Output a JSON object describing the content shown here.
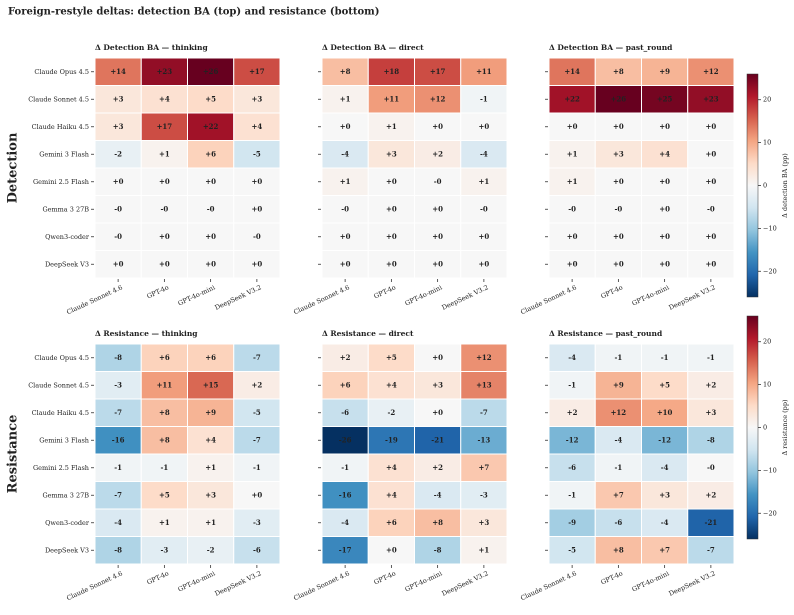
{
  "chart_data": {
    "type": "heatmap",
    "title": "Foreign-restyle deltas: detection BA (top) and resistance (bottom)",
    "colormap": "RdBu_r",
    "rows": [
      "Claude Opus 4.5",
      "Claude Sonnet 4.5",
      "Claude Haiku 4.5",
      "Gemini 3 Flash",
      "Gemini 2.5 Flash",
      "Gemma 3 27B",
      "Qwen3-coder",
      "DeepSeek V3"
    ],
    "columns": [
      "Claude Sonnet 4.6",
      "GPT-4o",
      "GPT-4o-mini",
      "DeepSeek V3.2"
    ],
    "groups": [
      {
        "name": "Detection",
        "colorbar_label": "Δ detection BA (pp)",
        "vlim": [
          -26,
          26
        ],
        "ticks": [
          {
            "value": -20,
            "label": "−20"
          },
          {
            "value": -10,
            "label": "−10"
          },
          0,
          10,
          20
        ],
        "panels": [
          {
            "title": "Δ Detection BA — thinking",
            "values": [
              [
                14,
                23,
                26,
                17
              ],
              [
                3,
                4,
                5,
                3
              ],
              [
                3,
                17,
                22,
                4
              ],
              [
                -2,
                1,
                6,
                -5
              ],
              [
                0,
                0,
                0,
                0
              ],
              [
                0,
                0,
                0,
                0
              ],
              [
                0,
                0,
                0,
                0
              ],
              [
                0,
                0,
                0,
                0
              ]
            ],
            "value_labels": [
              [
                "+14",
                "+23",
                "+26",
                "+17"
              ],
              [
                "+3",
                "+4",
                "+5",
                "+3"
              ],
              [
                "+3",
                "+17",
                "+22",
                "+4"
              ],
              [
                "-2",
                "+1",
                "+6",
                "-5"
              ],
              [
                "+0",
                "+0",
                "+0",
                "+0"
              ],
              [
                "-0",
                "-0",
                "-0",
                "+0"
              ],
              [
                "-0",
                "+0",
                "+0",
                "-0"
              ],
              [
                "+0",
                "+0",
                "+0",
                "+0"
              ]
            ]
          },
          {
            "title": "Δ Detection BA — direct",
            "values": [
              [
                8,
                18,
                17,
                11
              ],
              [
                1,
                11,
                12,
                -1
              ],
              [
                0,
                1,
                0,
                0
              ],
              [
                -4,
                3,
                2,
                -4
              ],
              [
                1,
                0,
                0,
                1
              ],
              [
                0,
                0,
                0,
                0
              ],
              [
                0,
                0,
                0,
                0
              ],
              [
                0,
                0,
                0,
                0
              ]
            ],
            "value_labels": [
              [
                "+8",
                "+18",
                "+17",
                "+11"
              ],
              [
                "+1",
                "+11",
                "+12",
                "-1"
              ],
              [
                "+0",
                "+1",
                "+0",
                "+0"
              ],
              [
                "-4",
                "+3",
                "+2",
                "-4"
              ],
              [
                "+1",
                "+0",
                "-0",
                "+1"
              ],
              [
                "-0",
                "+0",
                "+0",
                "-0"
              ],
              [
                "+0",
                "+0",
                "+0",
                "+0"
              ],
              [
                "+0",
                "+0",
                "+0",
                "+0"
              ]
            ]
          },
          {
            "title": "Δ Detection BA — past_round",
            "values": [
              [
                14,
                8,
                9,
                12
              ],
              [
                22,
                26,
                25,
                23
              ],
              [
                0,
                0,
                0,
                0
              ],
              [
                1,
                3,
                4,
                0
              ],
              [
                1,
                0,
                0,
                0
              ],
              [
                0,
                0,
                0,
                0
              ],
              [
                0,
                0,
                0,
                0
              ],
              [
                0,
                0,
                0,
                0
              ]
            ],
            "value_labels": [
              [
                "+14",
                "+8",
                "+9",
                "+12"
              ],
              [
                "+22",
                "+26",
                "+25",
                "+23"
              ],
              [
                "+0",
                "+0",
                "+0",
                "+0"
              ],
              [
                "+1",
                "+3",
                "+4",
                "+0"
              ],
              [
                "+1",
                "+0",
                "+0",
                "+0"
              ],
              [
                "-0",
                "-0",
                "+0",
                "-0"
              ],
              [
                "+0",
                "+0",
                "+0",
                "+0"
              ],
              [
                "+0",
                "+0",
                "+0",
                "+0"
              ]
            ]
          }
        ]
      },
      {
        "name": "Resistance",
        "colorbar_label": "Δ resistance (pp)",
        "vlim": [
          -26,
          26
        ],
        "ticks": [
          {
            "value": -20,
            "label": "−20"
          },
          {
            "value": -10,
            "label": "−10"
          },
          0,
          10,
          20
        ],
        "panels": [
          {
            "title": "Δ Resistance — thinking",
            "values": [
              [
                -8,
                6,
                6,
                -7
              ],
              [
                -3,
                11,
                15,
                2
              ],
              [
                -7,
                8,
                9,
                -5
              ],
              [
                -16,
                8,
                4,
                -7
              ],
              [
                -1,
                -1,
                1,
                -1
              ],
              [
                -7,
                5,
                3,
                0
              ],
              [
                -4,
                1,
                1,
                -3
              ],
              [
                -8,
                -3,
                -2,
                -6
              ]
            ],
            "value_labels": [
              [
                "-8",
                "+6",
                "+6",
                "-7"
              ],
              [
                "-3",
                "+11",
                "+15",
                "+2"
              ],
              [
                "-7",
                "+8",
                "+9",
                "-5"
              ],
              [
                "-16",
                "+8",
                "+4",
                "-7"
              ],
              [
                "-1",
                "-1",
                "+1",
                "-1"
              ],
              [
                "-7",
                "+5",
                "+3",
                "+0"
              ],
              [
                "-4",
                "+1",
                "+1",
                "-3"
              ],
              [
                "-8",
                "-3",
                "-2",
                "-6"
              ]
            ]
          },
          {
            "title": "Δ Resistance — direct",
            "values": [
              [
                2,
                5,
                0,
                12
              ],
              [
                6,
                4,
                3,
                13
              ],
              [
                -6,
                -2,
                0,
                -7
              ],
              [
                -26,
                -19,
                -21,
                -13
              ],
              [
                -1,
                4,
                2,
                7
              ],
              [
                -16,
                4,
                -4,
                -3
              ],
              [
                -4,
                6,
                8,
                3
              ],
              [
                -17,
                0,
                -8,
                1
              ]
            ],
            "value_labels": [
              [
                "+2",
                "+5",
                "+0",
                "+12"
              ],
              [
                "+6",
                "+4",
                "+3",
                "+13"
              ],
              [
                "-6",
                "-2",
                "+0",
                "-7"
              ],
              [
                "-26",
                "-19",
                "-21",
                "-13"
              ],
              [
                "-1",
                "+4",
                "+2",
                "+7"
              ],
              [
                "-16",
                "+4",
                "-4",
                "-3"
              ],
              [
                "-4",
                "+6",
                "+8",
                "+3"
              ],
              [
                "-17",
                "+0",
                "-8",
                "+1"
              ]
            ]
          },
          {
            "title": "Δ Resistance — past_round",
            "values": [
              [
                -4,
                -1,
                -1,
                -1
              ],
              [
                -1,
                9,
                5,
                2
              ],
              [
                2,
                12,
                10,
                3
              ],
              [
                -12,
                -4,
                -12,
                -8
              ],
              [
                -6,
                -1,
                -4,
                0
              ],
              [
                -1,
                7,
                3,
                2
              ],
              [
                -9,
                -6,
                -4,
                -21
              ],
              [
                -5,
                8,
                7,
                -7
              ]
            ],
            "value_labels": [
              [
                "-4",
                "-1",
                "-1",
                "-1"
              ],
              [
                "-1",
                "+9",
                "+5",
                "+2"
              ],
              [
                "+2",
                "+12",
                "+10",
                "+3"
              ],
              [
                "-12",
                "-4",
                "-12",
                "-8"
              ],
              [
                "-6",
                "-1",
                "-4",
                "-0"
              ],
              [
                "-1",
                "+7",
                "+3",
                "+2"
              ],
              [
                "-9",
                "-6",
                "-4",
                "-21"
              ],
              [
                "-5",
                "+8",
                "+7",
                "-7"
              ]
            ]
          }
        ]
      }
    ]
  }
}
